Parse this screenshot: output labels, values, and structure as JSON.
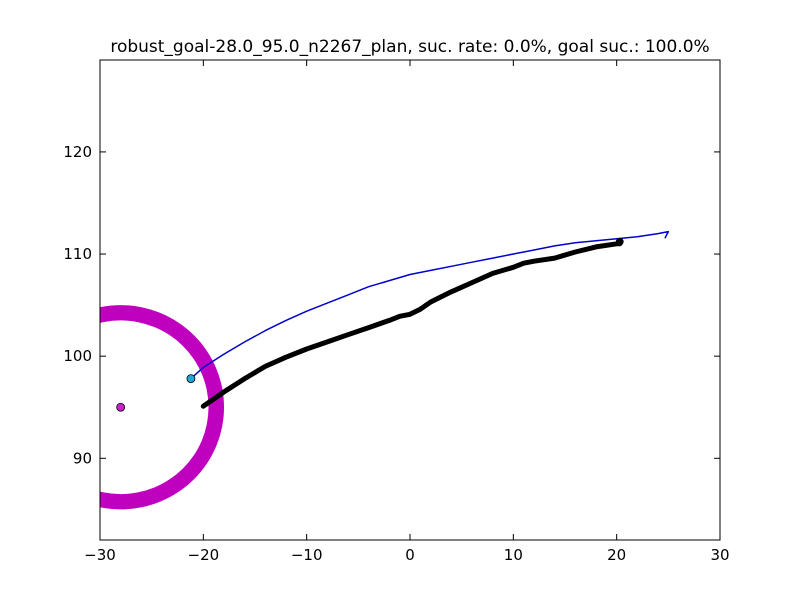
{
  "chart_data": {
    "type": "line",
    "title": "robust_goal-28.0_95.0_n2267_plan, suc. rate: 0.0%, goal suc.: 100.0%",
    "xlabel": "",
    "ylabel": "",
    "xlim": [
      -30,
      30
    ],
    "ylim": [
      82,
      129
    ],
    "xticks": [
      -30,
      -20,
      -10,
      0,
      10,
      20,
      30
    ],
    "yticks": [
      90,
      100,
      110,
      120
    ],
    "grid": false,
    "series": [
      {
        "style": "thin",
        "color": "#0000cc",
        "x": [
          -21.2,
          -20.0,
          -18.0,
          -16.0,
          -14.0,
          -12.0,
          -10.0,
          -8.0,
          -6.0,
          -4.0,
          -2.0,
          0.0,
          2.0,
          4.0,
          6.0,
          8.0,
          10.0,
          12.0,
          14.0,
          16.0,
          18.0,
          20.0,
          22.0,
          24.0,
          25.0,
          24.7
        ],
        "y": [
          97.8,
          98.9,
          100.2,
          101.4,
          102.5,
          103.5,
          104.4,
          105.2,
          106.0,
          106.8,
          107.4,
          108.0,
          108.4,
          108.8,
          109.2,
          109.6,
          110.0,
          110.4,
          110.8,
          111.1,
          111.3,
          111.5,
          111.7,
          112.0,
          112.2,
          111.6
        ]
      },
      {
        "style": "thick",
        "color": "#000000",
        "x": [
          -20.0,
          -19.0,
          -18.0,
          -16.0,
          -14.0,
          -12.0,
          -10.0,
          -8.0,
          -6.0,
          -4.0,
          -2.0,
          -1.0,
          0.0,
          1.0,
          2.0,
          4.0,
          6.0,
          8.0,
          10.0,
          11.0,
          12.0,
          14.0,
          16.0,
          18.0,
          20.0,
          20.3
        ],
        "y": [
          95.1,
          95.8,
          96.5,
          97.8,
          99.0,
          99.9,
          100.7,
          101.4,
          102.1,
          102.8,
          103.5,
          103.9,
          104.1,
          104.6,
          105.3,
          106.3,
          107.2,
          108.1,
          108.7,
          109.1,
          109.3,
          109.6,
          110.2,
          110.7,
          111.0,
          111.0
        ]
      }
    ],
    "points": [
      {
        "x": -21.2,
        "y": 97.8,
        "color": "#22a6d4",
        "label": "start"
      },
      {
        "x": -28.0,
        "y": 95.0,
        "color": "#cc22cc",
        "label": "goal"
      },
      {
        "x": 20.3,
        "y": 111.2,
        "color": "#000000",
        "label": "end"
      }
    ],
    "goal_ring": {
      "cx": -28.0,
      "cy": 95.0,
      "inner_r": 8.5,
      "outer_r": 10.0,
      "color": "#bf00bf"
    }
  }
}
